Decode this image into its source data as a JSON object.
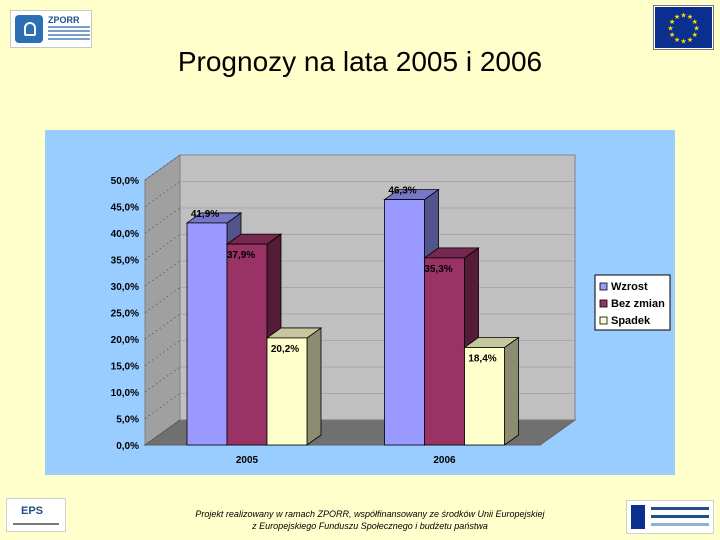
{
  "slide": {
    "title": "Prognozy na lata 2005 i 2006",
    "footer_line1": "Projekt realizowany w ramach ZPORR, współfinansowany ze środków Unii Europejskiej",
    "footer_line2": "z Europejskiego Funduszu Społecznego i budżetu państwa",
    "logo_zporr_text": "ZPORR",
    "logo_eps_text": "EPS"
  },
  "colors": {
    "background": "#ffffcc",
    "plot_area": "#99ccff",
    "wzrost": "#9999ff",
    "bez_zmian": "#993366",
    "spadek": "#ffffcc"
  },
  "chart_data": {
    "type": "bar",
    "style": "3d-clustered",
    "categories": [
      "2005",
      "2006"
    ],
    "series": [
      {
        "name": "Wzrost",
        "values": [
          41.9,
          46.3
        ],
        "labels": [
          "41,9%",
          "46,3%"
        ],
        "color": "#9999ff"
      },
      {
        "name": "Bez zmian",
        "values": [
          37.9,
          35.3
        ],
        "labels": [
          "37,9%",
          "35,3%"
        ],
        "color": "#993366"
      },
      {
        "name": "Spadek",
        "values": [
          20.2,
          18.4
        ],
        "labels": [
          "20,2%",
          "18,4%"
        ],
        "color": "#ffffcc"
      }
    ],
    "ylim": [
      0,
      50
    ],
    "yticks": [
      0,
      5,
      10,
      15,
      20,
      25,
      30,
      35,
      40,
      45,
      50
    ],
    "ytick_labels": [
      "0,0%",
      "5,0%",
      "10,0%",
      "15,0%",
      "20,0%",
      "25,0%",
      "30,0%",
      "35,0%",
      "40,0%",
      "45,0%",
      "50,0%"
    ],
    "legend": "right",
    "grid": true
  }
}
